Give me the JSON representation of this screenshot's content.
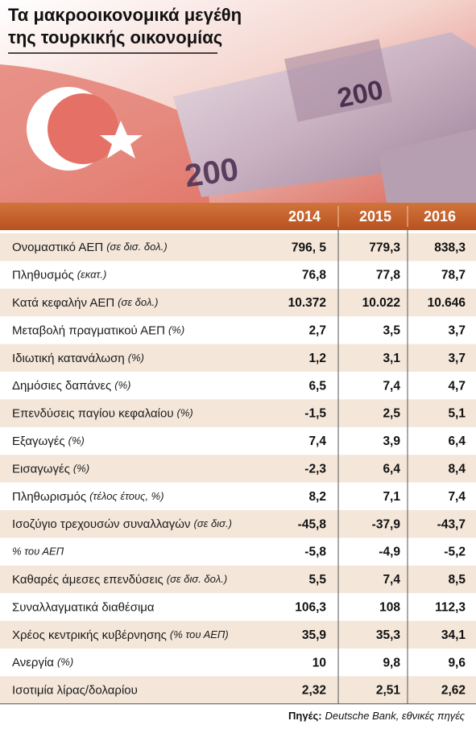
{
  "header": {
    "title_lines": [
      "Τα μακροοικονομικά μεγέθη",
      "της τουρκικής οικονομίας"
    ]
  },
  "table": {
    "columns": [
      "2014",
      "2015",
      "2016"
    ],
    "rows": [
      {
        "label": "Ονομαστικό ΑΕΠ",
        "note": "(σε δισ. δολ.)",
        "values": [
          "796, 5",
          "779,3",
          "838,3"
        ]
      },
      {
        "label": "Πληθυσμός",
        "note": "(εκατ.)",
        "values": [
          "76,8",
          "77,8",
          "78,7"
        ]
      },
      {
        "label": "Κατά κεφαλήν ΑΕΠ",
        "note": "(σε δολ.)",
        "values": [
          "10.372",
          "10.022",
          "10.646"
        ]
      },
      {
        "label": "Μεταβολή πραγματικού ΑΕΠ",
        "note": "(%)",
        "values": [
          "2,7",
          "3,5",
          "3,7"
        ]
      },
      {
        "label": "Ιδιωτική κατανάλωση",
        "note": "(%)",
        "values": [
          "1,2",
          "3,1",
          "3,7"
        ]
      },
      {
        "label": "Δημόσιες δαπάνες",
        "note": "(%)",
        "values": [
          "6,5",
          "7,4",
          "4,7"
        ]
      },
      {
        "label": "Επενδύσεις παγίου κεφαλαίου",
        "note": "(%)",
        "values": [
          "-1,5",
          "2,5",
          "5,1"
        ]
      },
      {
        "label": "Εξαγωγές",
        "note": "(%)",
        "values": [
          "7,4",
          "3,9",
          "6,4"
        ]
      },
      {
        "label": "Εισαγωγές",
        "note": "(%)",
        "values": [
          "-2,3",
          "6,4",
          "8,4"
        ]
      },
      {
        "label": "Πληθωρισμός",
        "note": "(τέλος έτους, %)",
        "values": [
          "8,2",
          "7,1",
          "7,4"
        ]
      },
      {
        "label": "Ισοζύγιο τρεχουσών συναλλαγών",
        "note": "(σε δισ.)",
        "values": [
          "-45,8",
          "-37,9",
          "-43,7"
        ]
      },
      {
        "note": "% του ΑΕΠ",
        "values": [
          "-5,8",
          "-4,9",
          "-5,2"
        ]
      },
      {
        "label": "Καθαρές άμεσες επενδύσεις",
        "note": "(σε δισ. δολ.)",
        "values": [
          "5,5",
          "7,4",
          "8,5"
        ]
      },
      {
        "label": "Συναλλαγματικά διαθέσιμα",
        "values": [
          "106,3",
          "108",
          "112,3"
        ]
      },
      {
        "label": "Χρέος κεντρικής κυβέρνησης",
        "note": "(% του ΑΕΠ)",
        "values": [
          "35,9",
          "35,3",
          "34,1"
        ]
      },
      {
        "label": "Ανεργία",
        "note": "(%)",
        "values": [
          "10",
          "9,8",
          "9,6"
        ]
      },
      {
        "label": "Ισοτιμία λίρας/δολαρίου",
        "values": [
          "2,32",
          "2,51",
          "2,62"
        ]
      }
    ]
  },
  "footer": {
    "source_label": "Πηγές:",
    "source": "Deutsche Bank, εθνικές πηγές"
  }
}
